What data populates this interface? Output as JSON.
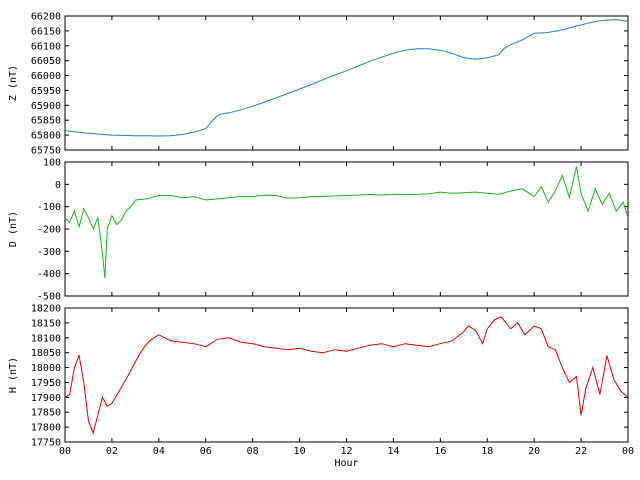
{
  "chart_data": [
    {
      "type": "line",
      "ylabel": "Z (nT)",
      "ylim": [
        65750,
        66200
      ],
      "yticks": [
        "65750",
        "65800",
        "65850",
        "65900",
        "65950",
        "66000",
        "66050",
        "66100",
        "66150",
        "66200"
      ],
      "xlim": [
        0,
        24
      ],
      "color": "#1f7fd0",
      "series": [
        {
          "x": [
            0,
            0.5,
            1,
            1.5,
            2,
            2.5,
            3,
            3.5,
            4,
            4.5,
            5,
            5.5,
            6,
            6.2,
            6.4,
            6.6,
            7,
            7.5,
            8,
            8.5,
            9,
            9.5,
            10,
            10.5,
            11,
            11.5,
            12,
            12.5,
            13,
            13.5,
            14,
            14.5,
            15,
            15.5,
            16,
            16.5,
            17,
            17.5,
            18,
            18.5,
            18.7,
            18.9,
            19.2,
            19.5,
            20,
            20.5,
            21,
            21.5,
            22,
            22.5,
            23,
            23.5,
            24
          ],
          "y": [
            65815,
            65810,
            65806,
            65803,
            65800,
            65799,
            65798,
            65798,
            65797,
            65798,
            65802,
            65810,
            65822,
            65840,
            65858,
            65870,
            65875,
            65885,
            65897,
            65911,
            65925,
            65940,
            65955,
            65970,
            65986,
            66002,
            66016,
            66032,
            66048,
            66062,
            66075,
            66085,
            66090,
            66090,
            66085,
            66075,
            66060,
            66055,
            66060,
            66070,
            66090,
            66100,
            66110,
            66120,
            66142,
            66144,
            66150,
            66160,
            66170,
            66180,
            66186,
            66188,
            66182
          ]
        }
      ]
    },
    {
      "type": "line",
      "ylabel": "D (nT)",
      "ylim": [
        -500,
        100
      ],
      "yticks": [
        "-500",
        "-400",
        "-300",
        "-200",
        "-100",
        "0",
        "100"
      ],
      "xlim": [
        0,
        24
      ],
      "color": "#20b020",
      "series": [
        {
          "x": [
            0,
            0.2,
            0.4,
            0.6,
            0.8,
            1,
            1.2,
            1.4,
            1.6,
            1.7,
            1.8,
            2,
            2.2,
            2.4,
            2.6,
            2.8,
            3,
            3.5,
            4,
            4.5,
            5,
            5.5,
            6,
            6.5,
            7,
            7.5,
            8,
            8.5,
            9,
            9.5,
            10,
            10.5,
            11,
            11.5,
            12,
            12.5,
            13,
            13.5,
            14,
            14.5,
            15,
            15.5,
            16,
            16.5,
            17,
            17.5,
            18,
            18.5,
            19,
            19.5,
            20,
            20.3,
            20.6,
            20.9,
            21.2,
            21.5,
            21.8,
            22,
            22.3,
            22.6,
            22.9,
            23.2,
            23.5,
            23.8,
            24
          ],
          "y": [
            -150,
            -170,
            -120,
            -190,
            -110,
            -150,
            -200,
            -150,
            -310,
            -420,
            -200,
            -140,
            -180,
            -160,
            -120,
            -100,
            -70,
            -65,
            -50,
            -50,
            -60,
            -55,
            -70,
            -65,
            -60,
            -55,
            -55,
            -48,
            -50,
            -62,
            -60,
            -55,
            -55,
            -52,
            -50,
            -48,
            -45,
            -48,
            -44,
            -46,
            -45,
            -42,
            -35,
            -40,
            -38,
            -35,
            -40,
            -45,
            -30,
            -20,
            -55,
            -10,
            -80,
            -30,
            40,
            -60,
            80,
            -40,
            -120,
            -20,
            -90,
            -40,
            -120,
            -80,
            -150
          ]
        }
      ]
    },
    {
      "type": "line",
      "ylabel": "H (nT)",
      "xlabel": "Hour",
      "ylim": [
        17750,
        18200
      ],
      "yticks": [
        "17750",
        "17800",
        "17850",
        "17900",
        "17950",
        "18000",
        "18050",
        "18100",
        "18150",
        "18200"
      ],
      "xlim": [
        0,
        24
      ],
      "xticks": [
        "00",
        "02",
        "04",
        "06",
        "08",
        "10",
        "12",
        "14",
        "16",
        "18",
        "20",
        "22",
        "00"
      ],
      "color": "#e00000",
      "series": [
        {
          "x": [
            0,
            0.2,
            0.4,
            0.6,
            0.8,
            1,
            1.2,
            1.4,
            1.6,
            1.8,
            2,
            2.3,
            2.6,
            3,
            3.3,
            3.6,
            4,
            4.5,
            5,
            5.5,
            6,
            6.5,
            7,
            7.5,
            8,
            8.5,
            9,
            9.5,
            10,
            10.5,
            11,
            11.5,
            12,
            12.5,
            13,
            13.5,
            14,
            14.5,
            15,
            15.5,
            16,
            16.5,
            17,
            17.2,
            17.5,
            17.8,
            18,
            18.3,
            18.6,
            19,
            19.3,
            19.6,
            20,
            20.3,
            20.6,
            20.9,
            21.2,
            21.5,
            21.8,
            22,
            22.2,
            22.5,
            22.8,
            23.1,
            23.4,
            23.7,
            24
          ],
          "y": [
            17900,
            17910,
            18000,
            18040,
            17950,
            17820,
            17780,
            17840,
            17900,
            17870,
            17880,
            17920,
            17960,
            18020,
            18060,
            18090,
            18110,
            18090,
            18085,
            18080,
            18070,
            18095,
            18100,
            18085,
            18080,
            18070,
            18065,
            18060,
            18065,
            18055,
            18050,
            18060,
            18055,
            18065,
            18075,
            18080,
            18070,
            18080,
            18075,
            18070,
            18080,
            18090,
            18120,
            18140,
            18125,
            18080,
            18130,
            18160,
            18170,
            18130,
            18150,
            18110,
            18140,
            18130,
            18070,
            18060,
            18000,
            17950,
            17970,
            17840,
            17930,
            18000,
            17910,
            18040,
            17960,
            17920,
            17900
          ]
        }
      ]
    }
  ]
}
